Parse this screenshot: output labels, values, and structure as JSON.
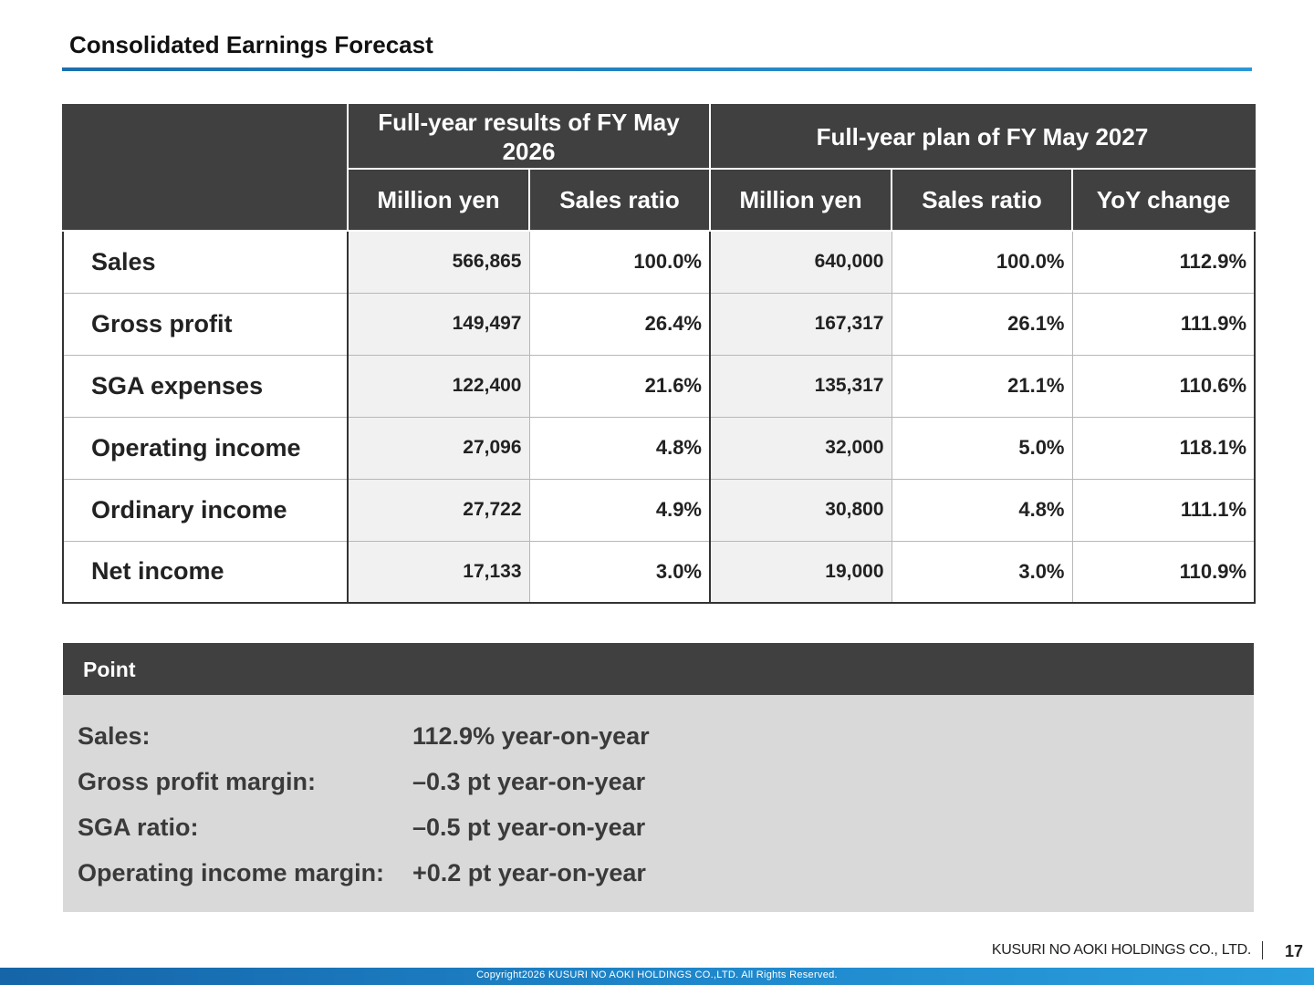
{
  "title": "Consolidated Earnings Forecast",
  "table": {
    "group_results": "Full-year results of FY May 2026",
    "group_plan": "Full-year plan of FY May 2027",
    "col_million_yen_1": "Million yen",
    "col_sales_ratio_1": "Sales ratio",
    "col_million_yen_2": "Million yen",
    "col_sales_ratio_2": "Sales ratio",
    "col_yoy": "YoY change",
    "rows": [
      {
        "label": "Sales",
        "r_yen": "566,865",
        "r_ratio": "100.0%",
        "p_yen": "640,000",
        "p_ratio": "100.0%",
        "yoy": "112.9%"
      },
      {
        "label": "Gross profit",
        "r_yen": "149,497",
        "r_ratio": "26.4%",
        "p_yen": "167,317",
        "p_ratio": "26.1%",
        "yoy": "111.9%"
      },
      {
        "label": "SGA expenses",
        "r_yen": "122,400",
        "r_ratio": "21.6%",
        "p_yen": "135,317",
        "p_ratio": "21.1%",
        "yoy": "110.6%"
      },
      {
        "label": "Operating income",
        "r_yen": "27,096",
        "r_ratio": "4.8%",
        "p_yen": "32,000",
        "p_ratio": "5.0%",
        "yoy": "118.1%"
      },
      {
        "label": "Ordinary income",
        "r_yen": "27,722",
        "r_ratio": "4.9%",
        "p_yen": "30,800",
        "p_ratio": "4.8%",
        "yoy": "111.1%"
      },
      {
        "label": "Net income",
        "r_yen": "17,133",
        "r_ratio": "3.0%",
        "p_yen": "19,000",
        "p_ratio": "3.0%",
        "yoy": "110.9%"
      }
    ]
  },
  "point": {
    "header": "Point",
    "items": [
      {
        "key": "Sales:",
        "value": "112.9% year-on-year"
      },
      {
        "key": "Gross profit margin:",
        "value": "–0.3 pt year-on-year"
      },
      {
        "key": "SGA ratio:",
        "value": "–0.5 pt year-on-year"
      },
      {
        "key": "Operating income margin:",
        "value": "+0.2 pt year-on-year"
      }
    ]
  },
  "footer": {
    "company": "KUSURI NO AOKI HOLDINGS CO., LTD.",
    "page_number": "17",
    "copyright": "Copyright2026 KUSURI NO AOKI HOLDINGS CO.,LTD. All Rights Reserved."
  },
  "colors": {
    "header_fill": "#404040",
    "accent_blue": "#1f88cc",
    "point_fill": "#d9d9d9"
  }
}
